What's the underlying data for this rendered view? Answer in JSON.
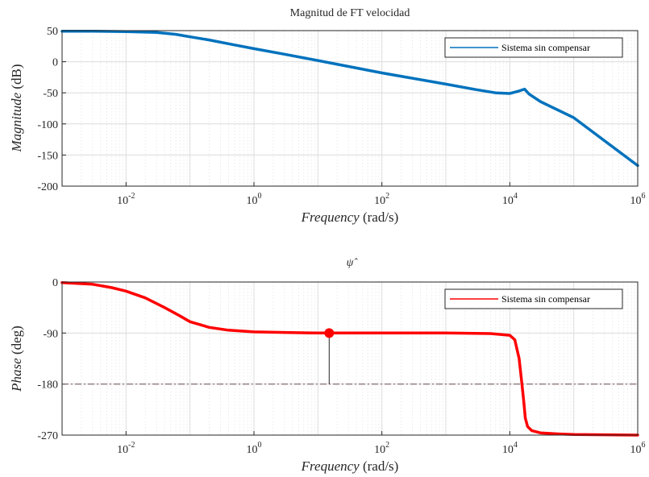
{
  "chart_data": [
    {
      "type": "line",
      "title": "Magnitud de FT velocidad",
      "xlabel_italic": "Frequency",
      "xlabel_unit": "(rad/s)",
      "ylabel_italic": "Magnitude",
      "ylabel_unit": "(dB)",
      "xscale": "log",
      "xlim": [
        0.001,
        1000000
      ],
      "ylim": [
        -200,
        50
      ],
      "yticks": [
        50,
        0,
        -50,
        -100,
        -150,
        -200
      ],
      "xticks": [
        {
          "base": "10",
          "exp": "-2",
          "value": 0.01
        },
        {
          "base": "10",
          "exp": "0",
          "value": 1
        },
        {
          "base": "10",
          "exp": "2",
          "value": 100
        },
        {
          "base": "10",
          "exp": "4",
          "value": 10000
        },
        {
          "base": "10",
          "exp": "6",
          "value": 1000000
        }
      ],
      "grid": true,
      "legend": {
        "position": "top-right",
        "entries": [
          "Sistema sin compensar"
        ]
      },
      "color": "#0072BD",
      "series": [
        {
          "name": "Sistema sin compensar",
          "x": [
            0.001,
            0.003,
            0.01,
            0.03,
            0.06,
            0.1,
            0.2,
            0.5,
            1,
            3,
            10,
            100,
            1000,
            3000,
            6000,
            10000,
            14000,
            17000,
            20000,
            30000,
            100000,
            1000000
          ],
          "y": [
            49,
            49,
            48.5,
            47,
            44,
            40,
            35,
            27,
            21,
            12,
            2,
            -18,
            -36,
            -45,
            -50,
            -51,
            -47,
            -44,
            -52,
            -64,
            -90,
            -167
          ]
        }
      ]
    },
    {
      "type": "line",
      "title": "ψ̂",
      "xlabel_italic": "Frequency",
      "xlabel_unit": "(rad/s)",
      "ylabel_italic": "Phase",
      "ylabel_unit": "(deg)",
      "xscale": "log",
      "xlim": [
        0.001,
        1000000
      ],
      "ylim": [
        -270,
        0
      ],
      "yticks": [
        0,
        -90,
        -180,
        -270
      ],
      "xticks": [
        {
          "base": "10",
          "exp": "-2",
          "value": 0.01
        },
        {
          "base": "10",
          "exp": "0",
          "value": 1
        },
        {
          "base": "10",
          "exp": "2",
          "value": 100
        },
        {
          "base": "10",
          "exp": "4",
          "value": 10000
        },
        {
          "base": "10",
          "exp": "6",
          "value": 1000000
        }
      ],
      "grid": true,
      "legend": {
        "position": "top-right",
        "entries": [
          "Sistema sin compensar"
        ]
      },
      "color": "#FF0000",
      "reference_line": {
        "y": -180,
        "style": "dash-dot"
      },
      "marker": {
        "x": 15,
        "y": -90,
        "stem_to": -180
      },
      "series": [
        {
          "name": "Sistema sin compensar",
          "x": [
            0.001,
            0.003,
            0.006,
            0.01,
            0.02,
            0.04,
            0.07,
            0.1,
            0.2,
            0.4,
            1,
            3,
            10,
            100,
            1000,
            5000,
            10000,
            12000,
            14000,
            15500,
            16500,
            17500,
            19000,
            22000,
            30000,
            60000,
            100000,
            1000000
          ],
          "y": [
            -1,
            -4,
            -10,
            -16,
            -28,
            -45,
            -60,
            -70,
            -80,
            -85,
            -88,
            -89,
            -90,
            -90,
            -90,
            -91,
            -94,
            -102,
            -135,
            -180,
            -210,
            -240,
            -255,
            -262,
            -266,
            -268,
            -269,
            -270
          ]
        }
      ]
    }
  ]
}
